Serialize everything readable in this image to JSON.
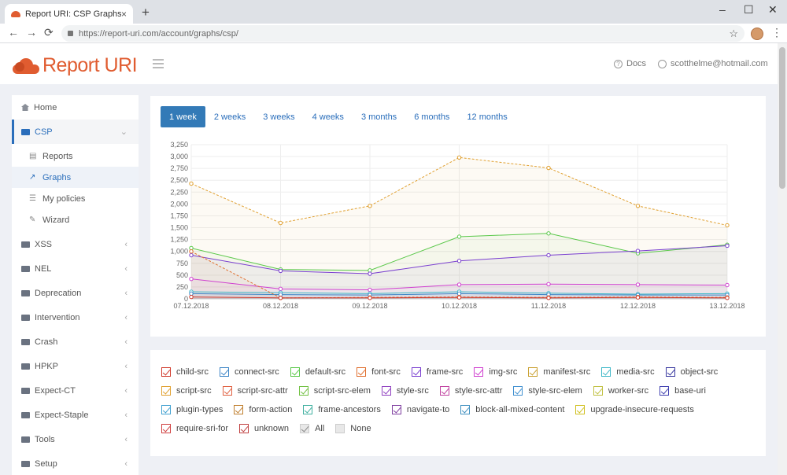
{
  "browser": {
    "tab_title": "Report URI: CSP Graphs",
    "url": "https://report-uri.com/account/graphs/csp/",
    "new_tab": "+",
    "close_tab": "×",
    "win_min": "–",
    "win_max": "☐",
    "win_close": "✕",
    "back": "←",
    "forward": "→",
    "reload": "⟳",
    "bookmark": "☆",
    "menu": "⋮"
  },
  "header": {
    "brand": "Report URI",
    "docs": "Docs",
    "user": "scotthelme@hotmail.com"
  },
  "sidebar": {
    "home": "Home",
    "csp": "CSP",
    "sub": [
      {
        "label": "Reports",
        "icon": "reports-icon",
        "glyph": "▤"
      },
      {
        "label": "Graphs",
        "icon": "graphs-icon",
        "glyph": "↗"
      },
      {
        "label": "My policies",
        "icon": "policies-icon",
        "glyph": "☰"
      },
      {
        "label": "Wizard",
        "icon": "wizard-icon",
        "glyph": "✎"
      }
    ],
    "groups": [
      "XSS",
      "NEL",
      "Deprecation",
      "Intervention",
      "Crash",
      "HPKP",
      "Expect-CT",
      "Expect-Staple",
      "Tools",
      "Setup"
    ],
    "chevron_open": "⌄",
    "chevron_closed": "‹"
  },
  "range_tabs": [
    "1 week",
    "2 weeks",
    "3 weeks",
    "4 weeks",
    "3 months",
    "6 months",
    "12 months"
  ],
  "chart_data": {
    "type": "line",
    "x": [
      "07.12.2018",
      "08.12.2018",
      "09.12.2018",
      "10.12.2018",
      "11.12.2018",
      "12.12.2018",
      "13.12.2018"
    ],
    "yticks": [
      "0",
      "250",
      "500",
      "750",
      "1,000",
      "1,250",
      "1,500",
      "1,750",
      "2,000",
      "2,250",
      "2,500",
      "2,750",
      "3,000",
      "3,250"
    ],
    "ylim": [
      0,
      3250
    ],
    "grid": true,
    "series": [
      {
        "name": "manifest-src",
        "color": "#e0a030",
        "values": [
          2430,
          1600,
          1960,
          2980,
          2760,
          1960,
          1550
        ]
      },
      {
        "name": "default-src",
        "color": "#5ac84a",
        "values": [
          1070,
          620,
          600,
          1310,
          1380,
          960,
          1140
        ]
      },
      {
        "name": "frame-src",
        "color": "#7a3fd0",
        "values": [
          920,
          590,
          530,
          800,
          920,
          1010,
          1120
        ]
      },
      {
        "name": "img-src",
        "color": "#d040d0",
        "values": [
          420,
          210,
          190,
          300,
          310,
          300,
          290
        ]
      },
      {
        "name": "media-src",
        "color": "#40b8c8",
        "values": [
          150,
          130,
          110,
          150,
          120,
          100,
          110
        ]
      },
      {
        "name": "connect-src",
        "color": "#3d85c6",
        "values": [
          110,
          90,
          80,
          110,
          90,
          80,
          80
        ]
      },
      {
        "name": "font-src",
        "color": "#e07030",
        "values": [
          1000,
          20,
          30,
          40,
          30,
          40,
          30
        ]
      },
      {
        "name": "child-src",
        "color": "#d0392b",
        "values": [
          40,
          20,
          20,
          30,
          20,
          30,
          20
        ]
      }
    ]
  },
  "legend": {
    "rows": [
      [
        {
          "label": "child-src",
          "color": "#d0392b"
        },
        {
          "label": "connect-src",
          "color": "#3d85c6"
        },
        {
          "label": "default-src",
          "color": "#5ac84a"
        },
        {
          "label": "font-src",
          "color": "#e07030"
        },
        {
          "label": "frame-src",
          "color": "#7a3fd0"
        },
        {
          "label": "img-src",
          "color": "#d040d0"
        },
        {
          "label": "manifest-src",
          "color": "#c9a030"
        },
        {
          "label": "media-src",
          "color": "#40b8c8"
        },
        {
          "label": "object-src",
          "color": "#3a3aa0"
        }
      ],
      [
        {
          "label": "script-src",
          "color": "#e0a030"
        },
        {
          "label": "script-src-attr",
          "color": "#e06040"
        },
        {
          "label": "script-src-elem",
          "color": "#70c040"
        },
        {
          "label": "style-src",
          "color": "#9040c0"
        },
        {
          "label": "style-src-attr",
          "color": "#c040a0"
        },
        {
          "label": "style-src-elem",
          "color": "#4090d0"
        },
        {
          "label": "worker-src",
          "color": "#c0c040"
        },
        {
          "label": "base-uri",
          "color": "#4040b0"
        }
      ],
      [
        {
          "label": "plugin-types",
          "color": "#40a0d0"
        },
        {
          "label": "form-action",
          "color": "#c08030"
        },
        {
          "label": "frame-ancestors",
          "color": "#40b0a0"
        },
        {
          "label": "navigate-to",
          "color": "#8040a0"
        },
        {
          "label": "block-all-mixed-content",
          "color": "#4090c0"
        },
        {
          "label": "upgrade-insecure-requests",
          "color": "#d0c020"
        }
      ],
      [
        {
          "label": "require-sri-for",
          "color": "#d04040"
        },
        {
          "label": "unknown",
          "color": "#c04040"
        }
      ]
    ],
    "all": "All",
    "none": "None"
  }
}
